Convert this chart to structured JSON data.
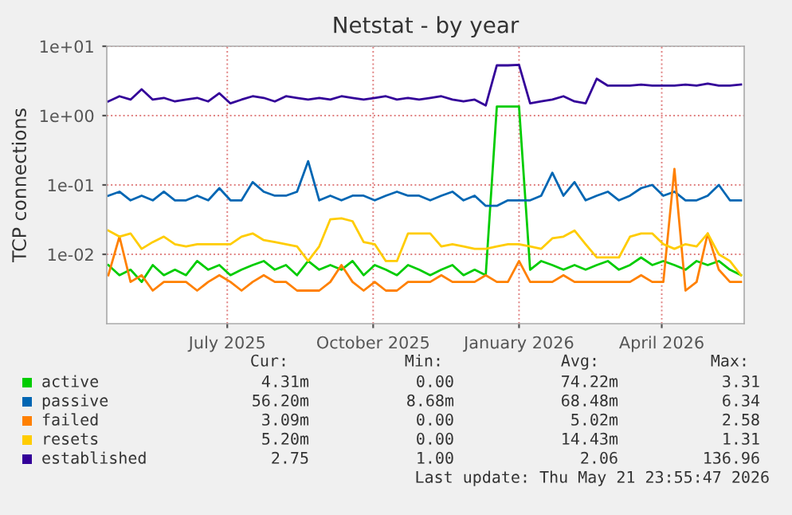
{
  "chart_data": {
    "type": "line",
    "title": "Netstat - by year",
    "ylabel": "TCP connections",
    "log": "y",
    "ylim": [
      0.001,
      10
    ],
    "yticks": [
      {
        "value": 0.01,
        "label": "1e-02"
      },
      {
        "value": 0.1,
        "label": "1e-01"
      },
      {
        "value": 1,
        "label": "1e+00"
      },
      {
        "value": 10,
        "label": "1e+01"
      }
    ],
    "xlim": [
      "2025-04-16",
      "2026-05-23"
    ],
    "xticks": [
      {
        "value": "2025-07-01",
        "label": "July 2025"
      },
      {
        "value": "2025-10-01",
        "label": "October 2025"
      },
      {
        "value": "2026-01-01",
        "label": "January 2026"
      },
      {
        "value": "2026-04-01",
        "label": "April 2026"
      }
    ],
    "grid": true,
    "legend": "bottom left",
    "x": [
      "2025-04-17",
      "2025-04-24",
      "2025-05-01",
      "2025-05-08",
      "2025-05-15",
      "2025-05-22",
      "2025-05-29",
      "2025-06-05",
      "2025-06-12",
      "2025-06-19",
      "2025-06-26",
      "2025-07-03",
      "2025-07-10",
      "2025-07-17",
      "2025-07-24",
      "2025-07-31",
      "2025-08-07",
      "2025-08-14",
      "2025-08-21",
      "2025-08-28",
      "2025-09-04",
      "2025-09-11",
      "2025-09-18",
      "2025-09-25",
      "2025-10-02",
      "2025-10-09",
      "2025-10-16",
      "2025-10-23",
      "2025-10-30",
      "2025-11-06",
      "2025-11-13",
      "2025-11-20",
      "2025-11-27",
      "2025-12-04",
      "2025-12-11",
      "2025-12-18",
      "2025-12-25",
      "2026-01-01",
      "2026-01-08",
      "2026-01-15",
      "2026-01-22",
      "2026-01-29",
      "2026-02-05",
      "2026-02-12",
      "2026-02-19",
      "2026-02-26",
      "2026-03-05",
      "2026-03-12",
      "2026-03-19",
      "2026-03-26",
      "2026-04-02",
      "2026-04-09",
      "2026-04-16",
      "2026-04-23",
      "2026-04-30",
      "2026-05-07",
      "2026-05-14",
      "2026-05-21"
    ],
    "series": [
      {
        "name": "active",
        "color": "#00cc00",
        "values": [
          0.007,
          0.005,
          0.006,
          0.004,
          0.007,
          0.005,
          0.006,
          0.005,
          0.008,
          0.006,
          0.007,
          0.005,
          0.006,
          0.007,
          0.008,
          0.006,
          0.007,
          0.005,
          0.008,
          0.006,
          0.007,
          0.006,
          0.008,
          0.005,
          0.007,
          0.006,
          0.005,
          0.007,
          0.006,
          0.005,
          0.006,
          0.007,
          0.005,
          0.006,
          0.005,
          1.35,
          1.35,
          1.35,
          0.006,
          0.008,
          0.007,
          0.006,
          0.007,
          0.006,
          0.007,
          0.008,
          0.006,
          0.007,
          0.009,
          0.007,
          0.008,
          0.007,
          0.006,
          0.008,
          0.007,
          0.008,
          0.006,
          0.005
        ]
      },
      {
        "name": "passive",
        "color": "#0066b3",
        "values": [
          0.07,
          0.08,
          0.06,
          0.07,
          0.06,
          0.08,
          0.06,
          0.06,
          0.07,
          0.06,
          0.09,
          0.06,
          0.06,
          0.11,
          0.08,
          0.07,
          0.07,
          0.08,
          0.22,
          0.06,
          0.07,
          0.06,
          0.07,
          0.07,
          0.06,
          0.07,
          0.08,
          0.07,
          0.07,
          0.06,
          0.07,
          0.08,
          0.06,
          0.07,
          0.05,
          0.05,
          0.06,
          0.06,
          0.06,
          0.07,
          0.15,
          0.07,
          0.11,
          0.06,
          0.07,
          0.08,
          0.06,
          0.07,
          0.09,
          0.1,
          0.07,
          0.08,
          0.06,
          0.06,
          0.07,
          0.1,
          0.06,
          0.06
        ]
      },
      {
        "name": "failed",
        "color": "#ff8000",
        "values": [
          0.005,
          0.018,
          0.004,
          0.005,
          0.003,
          0.004,
          0.004,
          0.004,
          0.003,
          0.004,
          0.005,
          0.004,
          0.003,
          0.004,
          0.005,
          0.004,
          0.004,
          0.003,
          0.003,
          0.003,
          0.004,
          0.007,
          0.004,
          0.003,
          0.004,
          0.003,
          0.003,
          0.004,
          0.004,
          0.004,
          0.005,
          0.004,
          0.004,
          0.004,
          0.005,
          0.004,
          0.004,
          0.008,
          0.004,
          0.004,
          0.004,
          0.005,
          0.004,
          0.004,
          0.004,
          0.004,
          0.004,
          0.004,
          0.005,
          0.004,
          0.004,
          0.17,
          0.003,
          0.004,
          0.02,
          0.006,
          0.004,
          0.004
        ]
      },
      {
        "name": "resets",
        "color": "#ffcc00",
        "values": [
          0.022,
          0.018,
          0.02,
          0.012,
          0.015,
          0.018,
          0.014,
          0.013,
          0.014,
          0.014,
          0.014,
          0.014,
          0.018,
          0.02,
          0.016,
          0.015,
          0.014,
          0.013,
          0.008,
          0.013,
          0.032,
          0.033,
          0.03,
          0.015,
          0.014,
          0.008,
          0.008,
          0.02,
          0.02,
          0.02,
          0.013,
          0.014,
          0.013,
          0.012,
          0.012,
          0.013,
          0.014,
          0.014,
          0.013,
          0.012,
          0.017,
          0.018,
          0.022,
          0.014,
          0.009,
          0.009,
          0.009,
          0.018,
          0.02,
          0.02,
          0.014,
          0.012,
          0.014,
          0.013,
          0.02,
          0.01,
          0.008,
          0.005
        ]
      },
      {
        "name": "established",
        "color": "#330099",
        "values": [
          1.6,
          1.9,
          1.7,
          2.4,
          1.7,
          1.8,
          1.6,
          1.7,
          1.8,
          1.6,
          2.1,
          1.5,
          1.7,
          1.9,
          1.8,
          1.6,
          1.9,
          1.8,
          1.7,
          1.8,
          1.7,
          1.9,
          1.8,
          1.7,
          1.8,
          1.9,
          1.7,
          1.8,
          1.7,
          1.8,
          1.9,
          1.7,
          1.6,
          1.7,
          1.4,
          5.3,
          5.3,
          5.4,
          1.5,
          1.6,
          1.7,
          1.9,
          1.6,
          1.5,
          3.4,
          2.7,
          2.7,
          2.7,
          2.8,
          2.7,
          2.7,
          2.7,
          2.8,
          2.7,
          2.9,
          2.7,
          2.7,
          2.8
        ]
      }
    ],
    "annotations": [
      "Cur:",
      "Min:",
      "Avg:",
      "Max:",
      "4.31m",
      "0.00",
      "74.22m",
      "3.31",
      "56.20m",
      "8.68m",
      "68.48m",
      "6.34",
      "3.09m",
      "0.00",
      "5.02m",
      "2.58",
      "5.20m",
      "0.00",
      "14.43m",
      "1.31",
      "2.75",
      "1.00",
      "2.06",
      "136.96",
      "Last update: Thu May 21 23:55:47 2026"
    ]
  }
}
